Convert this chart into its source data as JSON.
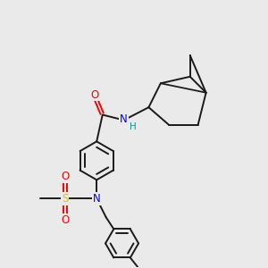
{
  "background_color": "#eaeaea",
  "figsize": [
    3.0,
    3.0
  ],
  "dpi": 100,
  "atom_colors": {
    "O": "#ff0000",
    "N": "#0000ff",
    "S": "#cccc00",
    "H": "#009999",
    "C": "#000000"
  },
  "bond_color": "#1a1a1a",
  "bond_width": 1.4
}
